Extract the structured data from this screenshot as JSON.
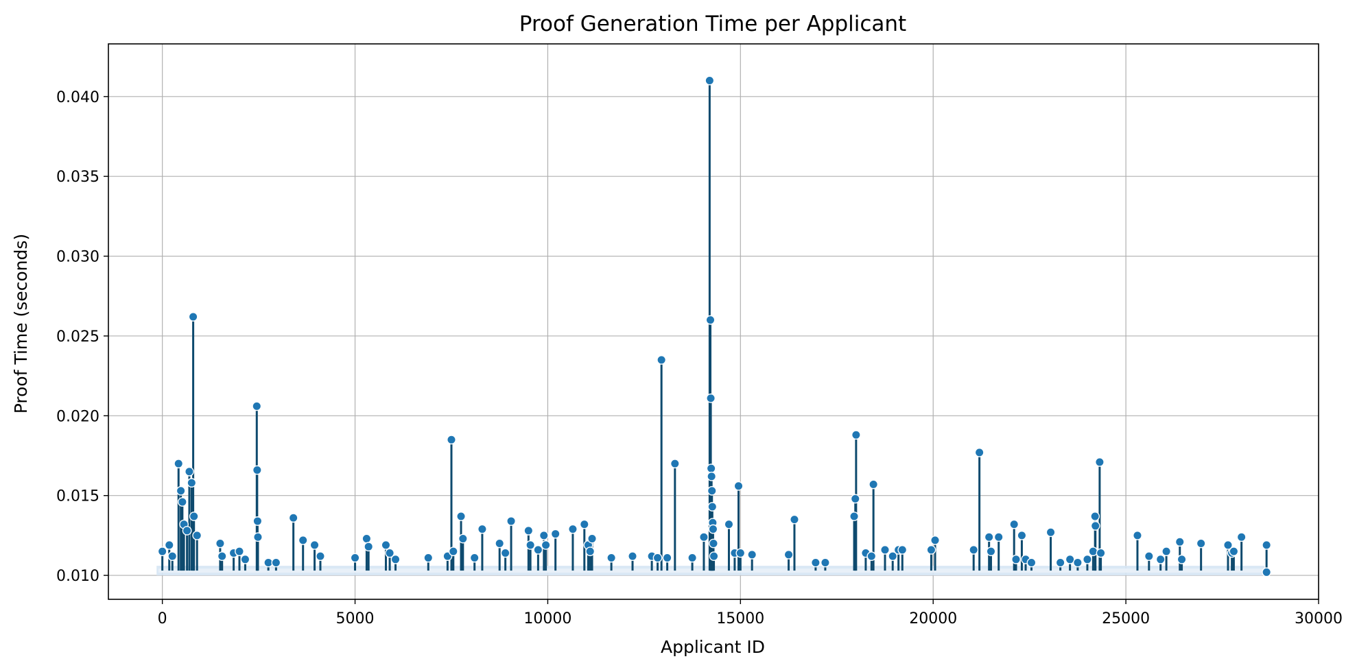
{
  "chart_data": {
    "type": "line",
    "title": "Proof Generation Time per Applicant",
    "xlabel": "Applicant ID",
    "ylabel": "Proof Time (seconds)",
    "xlim": [
      -1400,
      30000
    ],
    "ylim": [
      0.0085,
      0.0433
    ],
    "xticks": [
      0,
      5000,
      10000,
      15000,
      20000,
      25000,
      30000
    ],
    "yticks": [
      0.01,
      0.015,
      0.02,
      0.025,
      0.03,
      0.035,
      0.04
    ],
    "grid": true,
    "legend": "none",
    "baseline": 0.0103,
    "series_color": "#1f77b4",
    "line_color": "#0e4a6e",
    "spikes": [
      [
        0,
        0.0115
      ],
      [
        180,
        0.0119
      ],
      [
        260,
        0.0112
      ],
      [
        420,
        0.017
      ],
      [
        480,
        0.0153
      ],
      [
        520,
        0.0146
      ],
      [
        560,
        0.0132
      ],
      [
        640,
        0.0128
      ],
      [
        700,
        0.0165
      ],
      [
        760,
        0.0158
      ],
      [
        800,
        0.0262
      ],
      [
        820,
        0.0137
      ],
      [
        900,
        0.0125
      ],
      [
        1500,
        0.012
      ],
      [
        1550,
        0.0112
      ],
      [
        1850,
        0.0114
      ],
      [
        2000,
        0.0115
      ],
      [
        2150,
        0.011
      ],
      [
        2450,
        0.0206
      ],
      [
        2460,
        0.0166
      ],
      [
        2470,
        0.0134
      ],
      [
        2480,
        0.0124
      ],
      [
        2750,
        0.0108
      ],
      [
        2950,
        0.0108
      ],
      [
        3400,
        0.0136
      ],
      [
        3650,
        0.0122
      ],
      [
        3950,
        0.0119
      ],
      [
        4100,
        0.0112
      ],
      [
        5000,
        0.0111
      ],
      [
        5300,
        0.0123
      ],
      [
        5350,
        0.0118
      ],
      [
        5800,
        0.0119
      ],
      [
        5900,
        0.0114
      ],
      [
        6050,
        0.011
      ],
      [
        6900,
        0.0111
      ],
      [
        7400,
        0.0112
      ],
      [
        7500,
        0.0185
      ],
      [
        7550,
        0.0115
      ],
      [
        7750,
        0.0137
      ],
      [
        7800,
        0.0123
      ],
      [
        8100,
        0.0111
      ],
      [
        8300,
        0.0129
      ],
      [
        8750,
        0.012
      ],
      [
        8900,
        0.0114
      ],
      [
        9050,
        0.0134
      ],
      [
        9500,
        0.0128
      ],
      [
        9550,
        0.0119
      ],
      [
        9750,
        0.0116
      ],
      [
        9900,
        0.0125
      ],
      [
        9950,
        0.0119
      ],
      [
        10200,
        0.0126
      ],
      [
        10650,
        0.0129
      ],
      [
        10950,
        0.0132
      ],
      [
        11050,
        0.0119
      ],
      [
        11100,
        0.0115
      ],
      [
        11150,
        0.0123
      ],
      [
        11650,
        0.0111
      ],
      [
        12200,
        0.0112
      ],
      [
        12700,
        0.0112
      ],
      [
        12850,
        0.0111
      ],
      [
        12950,
        0.0235
      ],
      [
        13100,
        0.0111
      ],
      [
        13300,
        0.017
      ],
      [
        13750,
        0.0111
      ],
      [
        14050,
        0.0124
      ],
      [
        14200,
        0.041
      ],
      [
        14220,
        0.026
      ],
      [
        14230,
        0.0211
      ],
      [
        14240,
        0.0167
      ],
      [
        14250,
        0.0162
      ],
      [
        14260,
        0.0153
      ],
      [
        14270,
        0.0143
      ],
      [
        14280,
        0.0133
      ],
      [
        14290,
        0.0129
      ],
      [
        14300,
        0.012
      ],
      [
        14310,
        0.0112
      ],
      [
        14700,
        0.0132
      ],
      [
        14850,
        0.0114
      ],
      [
        14950,
        0.0156
      ],
      [
        15000,
        0.0114
      ],
      [
        15300,
        0.0113
      ],
      [
        16250,
        0.0113
      ],
      [
        16400,
        0.0135
      ],
      [
        16950,
        0.0108
      ],
      [
        17200,
        0.0108
      ],
      [
        17950,
        0.0137
      ],
      [
        17980,
        0.0148
      ],
      [
        18000,
        0.0188
      ],
      [
        18250,
        0.0114
      ],
      [
        18400,
        0.0112
      ],
      [
        18450,
        0.0157
      ],
      [
        18750,
        0.0116
      ],
      [
        18950,
        0.0112
      ],
      [
        19100,
        0.0116
      ],
      [
        19200,
        0.0116
      ],
      [
        19950,
        0.0116
      ],
      [
        20050,
        0.0122
      ],
      [
        21050,
        0.0116
      ],
      [
        21200,
        0.0177
      ],
      [
        21450,
        0.0124
      ],
      [
        21500,
        0.0115
      ],
      [
        21700,
        0.0124
      ],
      [
        22100,
        0.0132
      ],
      [
        22150,
        0.011
      ],
      [
        22300,
        0.0125
      ],
      [
        22400,
        0.011
      ],
      [
        22550,
        0.0108
      ],
      [
        23050,
        0.0127
      ],
      [
        23300,
        0.0108
      ],
      [
        23550,
        0.011
      ],
      [
        23750,
        0.0108
      ],
      [
        24000,
        0.011
      ],
      [
        24150,
        0.0115
      ],
      [
        24200,
        0.0137
      ],
      [
        24210,
        0.0131
      ],
      [
        24320,
        0.0171
      ],
      [
        24350,
        0.0114
      ],
      [
        25300,
        0.0125
      ],
      [
        25600,
        0.0112
      ],
      [
        25900,
        0.011
      ],
      [
        26050,
        0.0115
      ],
      [
        26400,
        0.0121
      ],
      [
        26450,
        0.011
      ],
      [
        26950,
        0.012
      ],
      [
        27650,
        0.0119
      ],
      [
        27750,
        0.0114
      ],
      [
        27800,
        0.0115
      ],
      [
        28000,
        0.0124
      ],
      [
        28650,
        0.0119
      ],
      [
        28650,
        0.0102
      ]
    ]
  }
}
